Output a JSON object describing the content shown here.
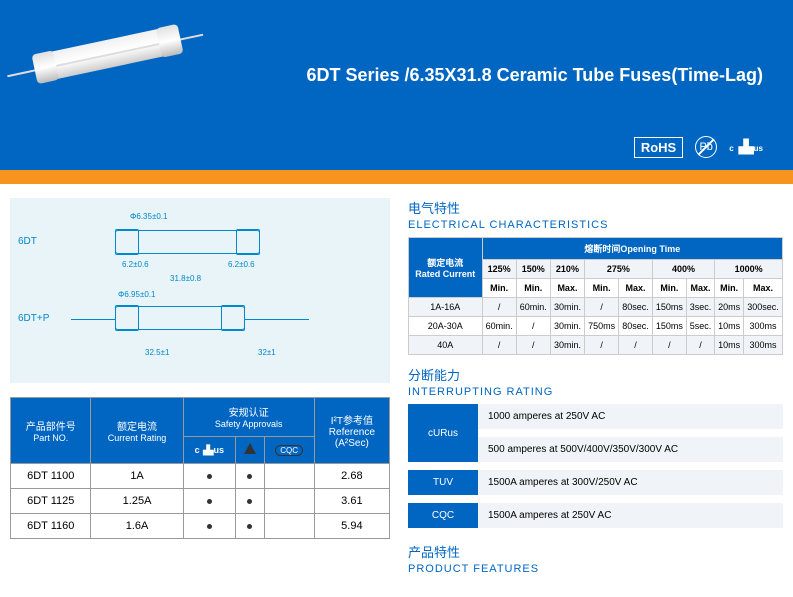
{
  "header": {
    "title": "6DT Series /6.35X31.8  Ceramic Tube Fuses(Time-Lag)",
    "rohs": "RoHS",
    "pb": "Pb",
    "ul_c": "c",
    "ul_main": "◣UL",
    "ul_us": "us"
  },
  "diagram": {
    "label1": "6DT",
    "label2": "6DT+P",
    "dia_top": "Φ6.35±0.1",
    "dim_left": "6.2±0.6",
    "dim_bottom": "31.8±0.8",
    "dim_right": "6.2±0.6",
    "dia2_top": "Φ6.95±0.1",
    "dim2_a": "32.5±1",
    "dim2_b": "32±1"
  },
  "parts": {
    "h_partno_cn": "产品部件号",
    "h_partno_en": "Part NO.",
    "h_curr_cn": "额定电流",
    "h_curr_en": "Current Rating",
    "h_safety_cn": "安规认证",
    "h_safety_en": "Safety Approvals",
    "h_ref_top": "I²T参考值",
    "h_ref_mid": "Reference",
    "h_ref_bot": "(A²Sec)",
    "cqc": "CQC",
    "rows": [
      {
        "pn": "6DT 1100",
        "cur": "1A",
        "ref": "2.68"
      },
      {
        "pn": "6DT 1125",
        "cur": "1.25A",
        "ref": "3.61"
      },
      {
        "pn": "6DT 1160",
        "cur": "1.6A",
        "ref": "5.94"
      }
    ]
  },
  "ec": {
    "title_cn": "电气特性",
    "title_en": "ELECTRICAL CHARACTERISTICS",
    "h_rated_cn": "额定电流",
    "h_rated_en": "Rated Current",
    "h_time_cn": "熔断时间",
    "h_time_en": "Opening Time",
    "pcts": [
      "125%",
      "150%",
      "210%",
      "275%",
      "400%",
      "1000%"
    ],
    "min": "Min.",
    "max": "Max.",
    "rows": [
      {
        "r": "1A-16A",
        "c": [
          "/",
          "60min.",
          "30min.",
          "/",
          "80sec.",
          "150ms",
          "3sec.",
          "20ms",
          "300sec."
        ]
      },
      {
        "r": "20A-30A",
        "c": [
          "60min.",
          "/",
          "30min.",
          "750ms",
          "80sec.",
          "150ms",
          "5sec.",
          "10ms",
          "300ms"
        ]
      },
      {
        "r": "40A",
        "c": [
          "/",
          "/",
          "30min.",
          "/",
          "/",
          "/",
          "/",
          "10ms",
          "300ms"
        ]
      }
    ]
  },
  "ir": {
    "title_cn": "分断能力",
    "title_en": "INTERRUPTING RATING",
    "rows": [
      {
        "lbl": "cURus",
        "val": "1000 amperes at 250V AC",
        "rowspan": 2
      },
      {
        "lbl": "",
        "val": "500 amperes at 500V/400V/350V/300V AC"
      },
      {
        "lbl": "TUV",
        "val": "1500A amperes at 300V/250V AC"
      },
      {
        "lbl": "CQC",
        "val": "1500A  amperes at 250V AC"
      }
    ]
  },
  "pf": {
    "title_cn": "产品特性",
    "title_en": "PRODUCT FEATURES"
  }
}
